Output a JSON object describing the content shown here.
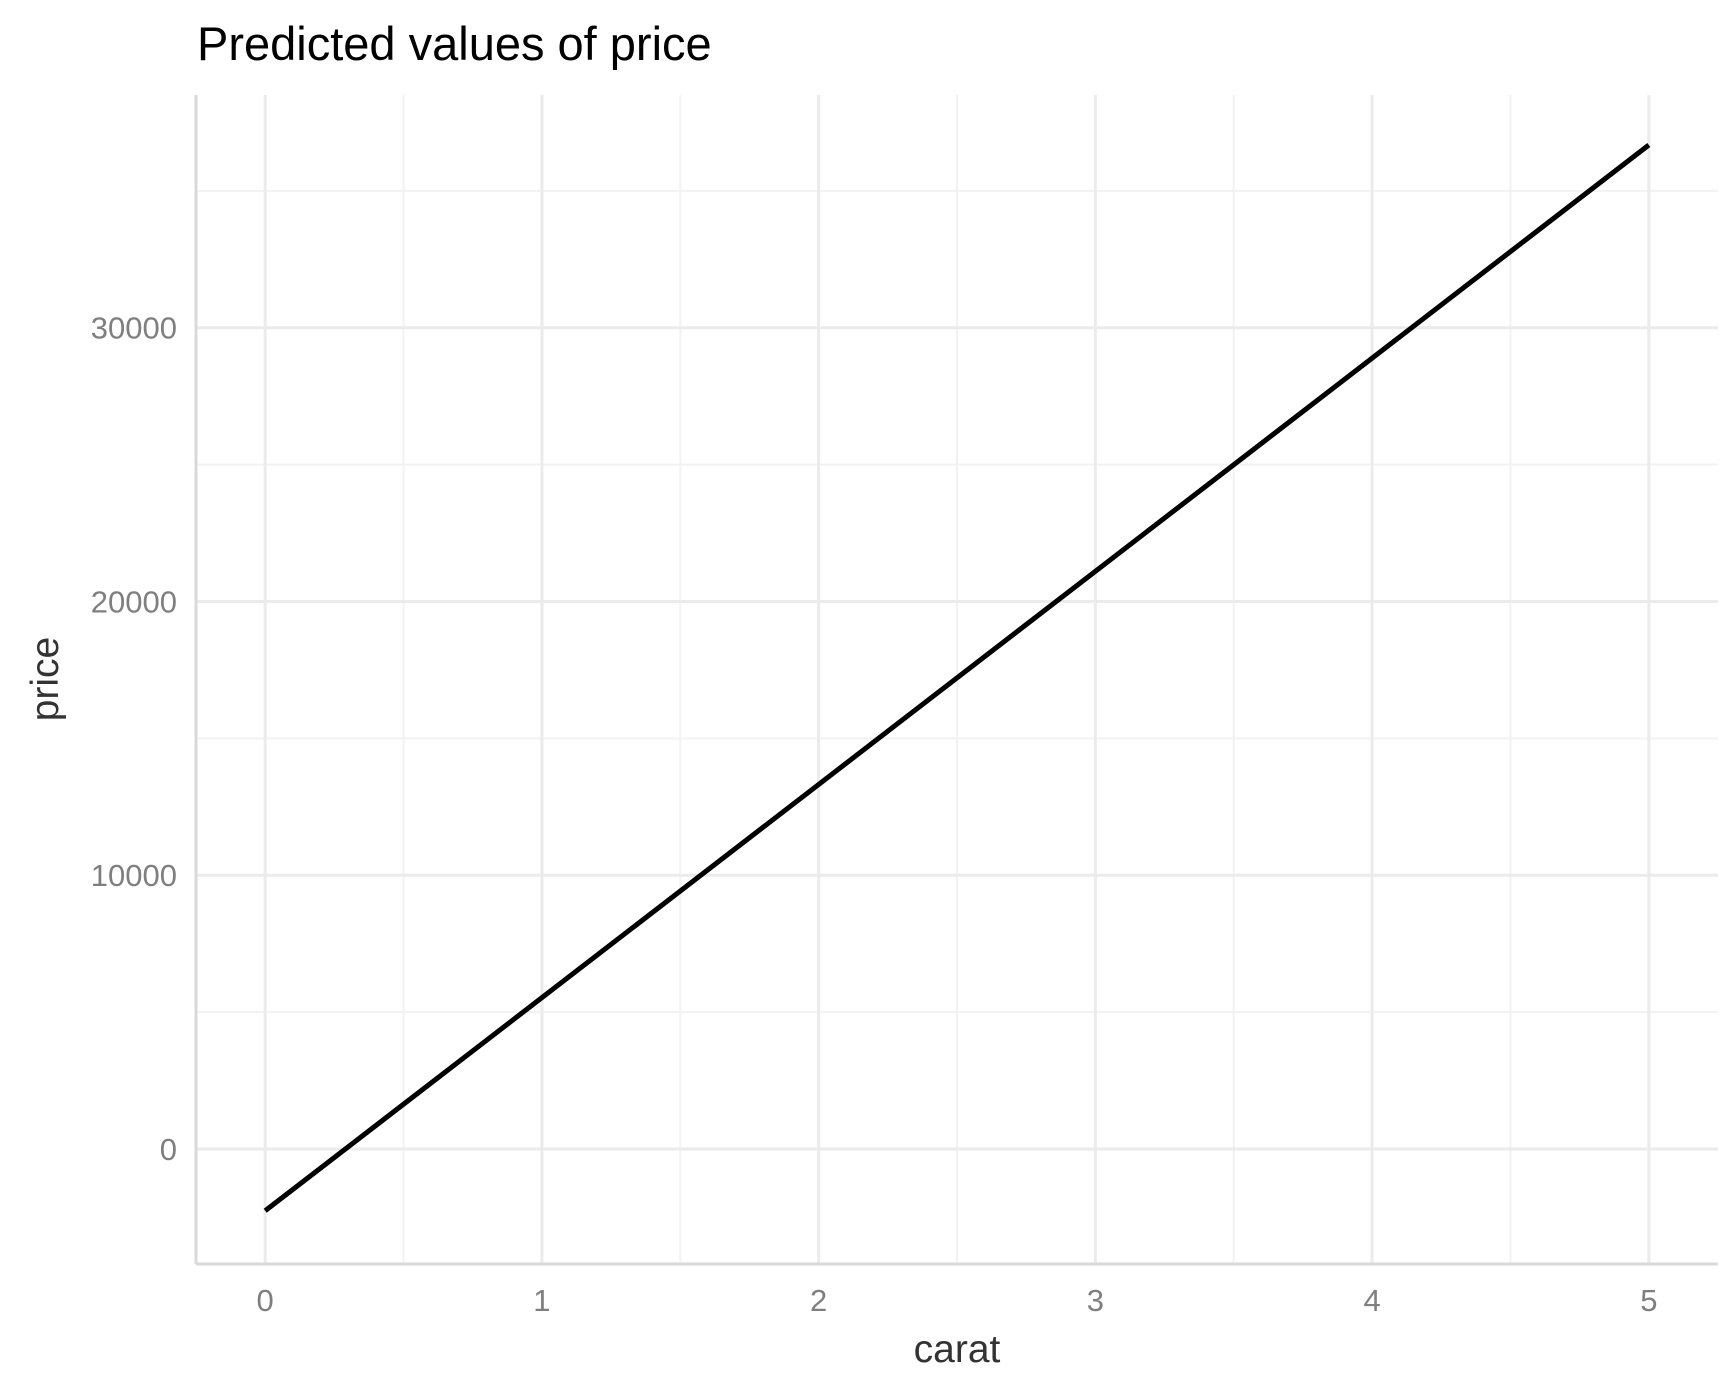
{
  "chart_data": {
    "type": "line",
    "title": "Predicted values of price",
    "xlabel": "carat",
    "ylabel": "price",
    "x": [
      0,
      5
    ],
    "y": [
      -2256,
      36673
    ],
    "xlim": [
      -0.25,
      5.25
    ],
    "ylim": [
      -4200,
      38500
    ],
    "x_ticks": [
      0,
      1,
      2,
      3,
      4,
      5
    ],
    "x_tick_labels": [
      "0",
      "1",
      "2",
      "3",
      "4",
      "5"
    ],
    "x_minor_ticks": [
      0.5,
      1.5,
      2.5,
      3.5,
      4.5
    ],
    "y_ticks": [
      0,
      10000,
      20000,
      30000
    ],
    "y_tick_labels": [
      "0",
      "10000",
      "20000",
      "30000"
    ],
    "y_minor_ticks": [
      5000,
      15000,
      25000,
      35000
    ],
    "grid": true,
    "legend": "none",
    "line_color": "#000000"
  }
}
